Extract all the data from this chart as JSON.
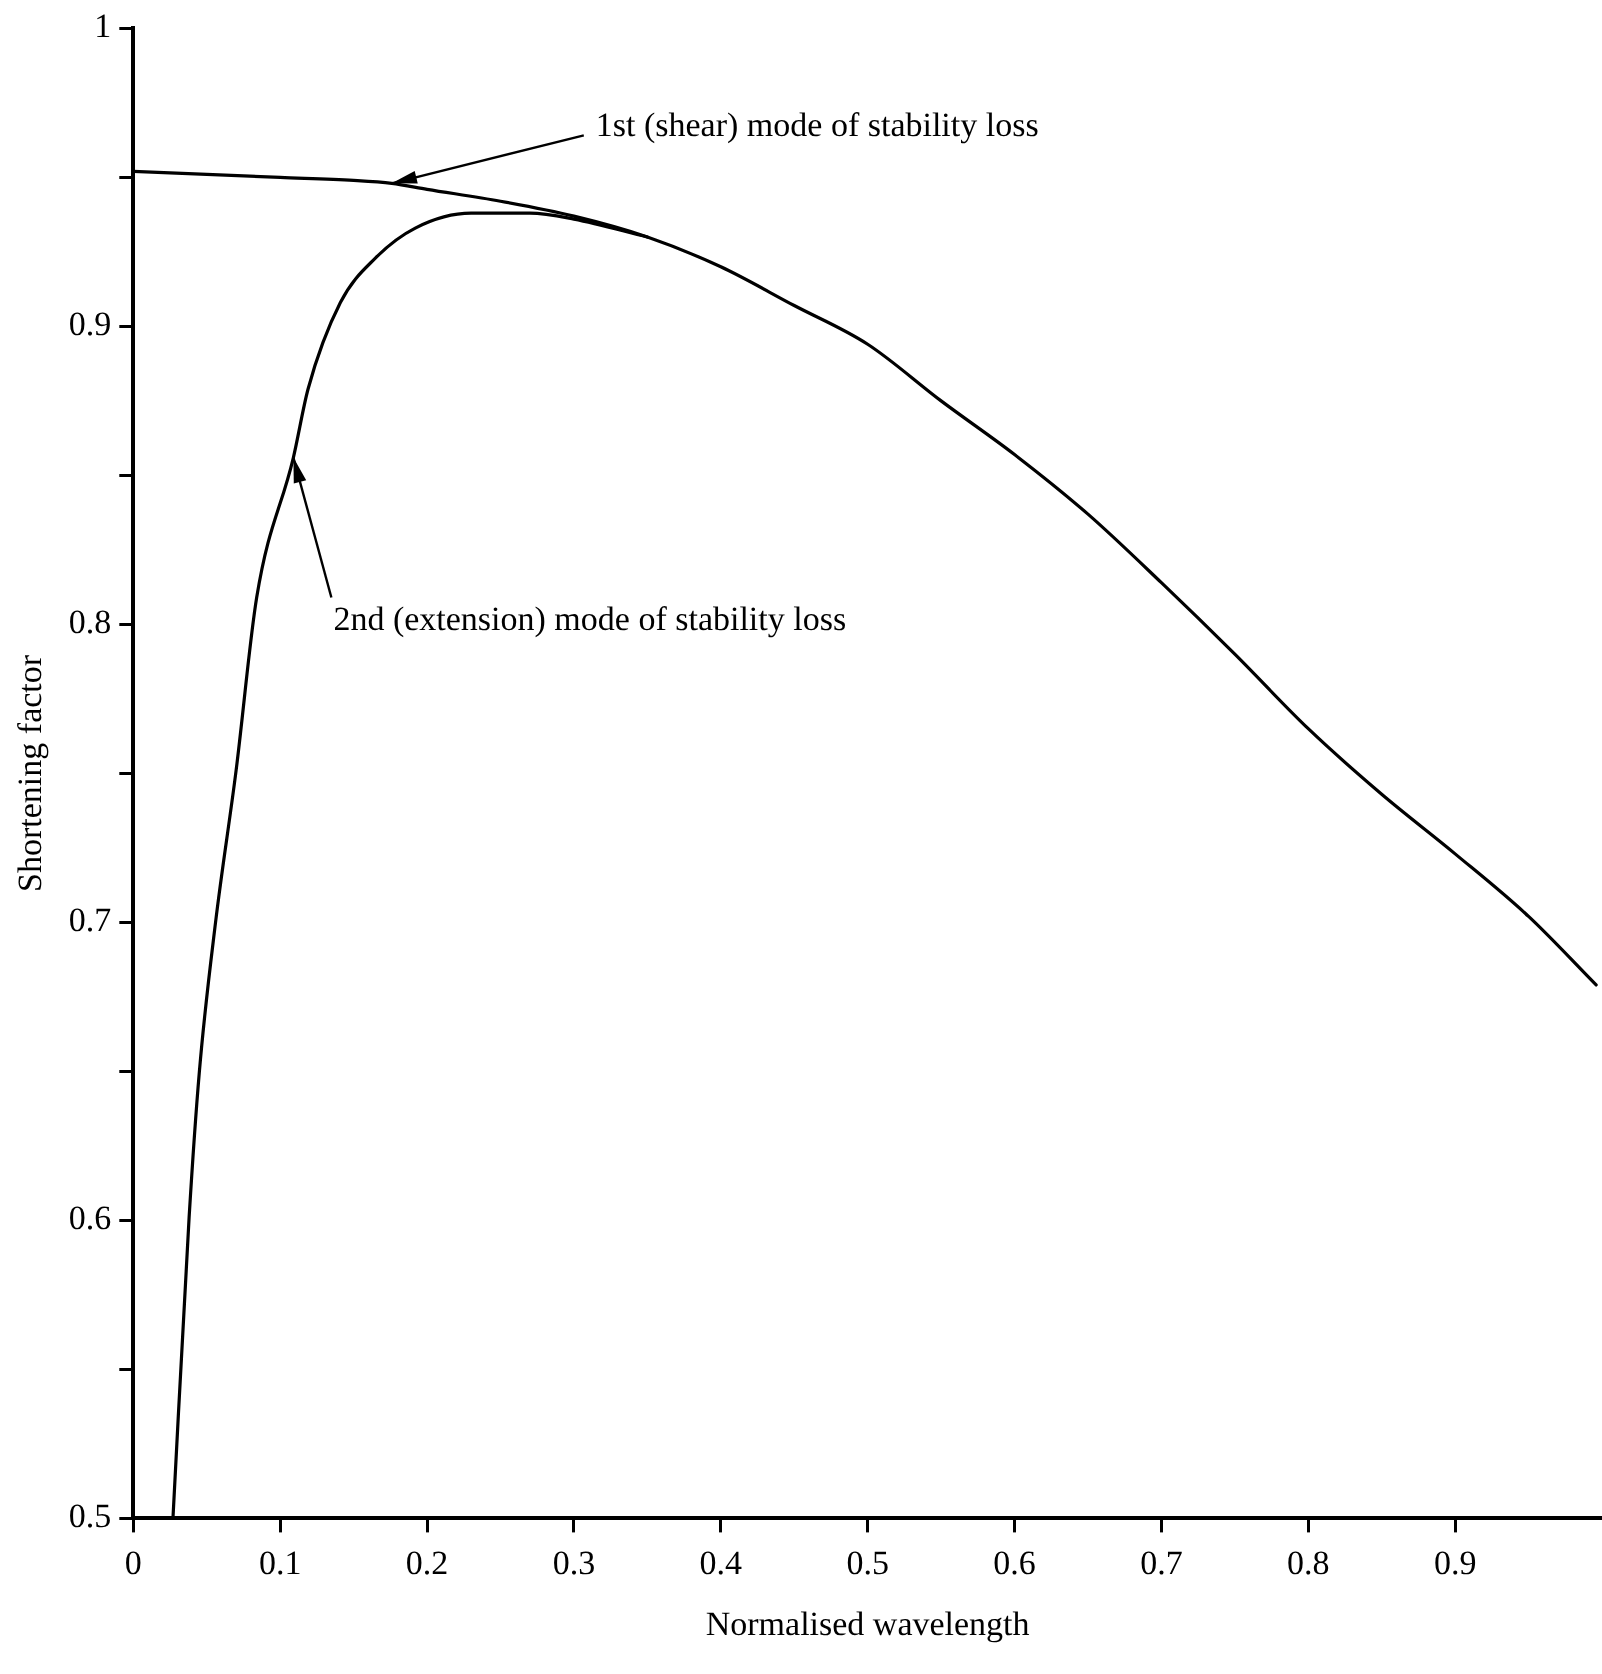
{
  "chart_data": {
    "type": "line",
    "xlabel": "Normalised wavelength",
    "ylabel": "Shortening factor",
    "xlim": [
      0,
      1
    ],
    "xticks": [
      0,
      0.1,
      0.2,
      0.3,
      0.4,
      0.5,
      0.6,
      0.7,
      0.8,
      0.9
    ],
    "ylim": [
      0.5,
      1
    ],
    "yticks": [
      0.5,
      {
        "value": 0.55,
        "label": null
      },
      0.6,
      {
        "value": 0.65,
        "label": null
      },
      0.7,
      {
        "value": 0.75,
        "label": null
      },
      0.8,
      {
        "value": 0.85,
        "label": null
      },
      0.9,
      {
        "value": 0.95,
        "label": null
      },
      1
    ],
    "grid": false,
    "legend": false,
    "marker": "none",
    "line_style": "solid",
    "series": [
      {
        "color": "#000000",
        "x": [
          0,
          0.05,
          0.1,
          0.15,
          0.176,
          0.2,
          0.25,
          0.3,
          0.35,
          0.4,
          0.45,
          0.5,
          0.55,
          0.6,
          0.65,
          0.7,
          0.75,
          0.8,
          0.85,
          0.9,
          0.95,
          0.996
        ],
        "values": [
          0.952,
          0.951,
          0.95,
          0.949,
          0.948,
          0.946,
          0.942,
          0.937,
          0.93,
          0.92,
          0.907,
          0.894,
          0.875,
          0.857,
          0.837,
          0.814,
          0.79,
          0.765,
          0.743,
          0.723,
          0.702,
          0.679
        ]
      },
      {
        "color": "#000000",
        "x": [
          0.027,
          0.038,
          0.045,
          0.056,
          0.07,
          0.084,
          0.109,
          0.119,
          0.141,
          0.165,
          0.192,
          0.23,
          0.27,
          0.3,
          0.35
        ],
        "values": [
          0.5,
          0.601,
          0.65,
          0.7,
          0.751,
          0.809,
          0.856,
          0.879,
          0.908,
          0.923,
          0.933,
          0.938,
          0.938,
          0.936,
          0.93
        ]
      }
    ],
    "annotations": [
      {
        "text": "1st (shear) mode of stability loss",
        "x": 0.176,
        "y": 0.948
      },
      {
        "text": "2nd (extension) mode of stability loss",
        "x": 0.109,
        "y": 0.856
      }
    ]
  }
}
